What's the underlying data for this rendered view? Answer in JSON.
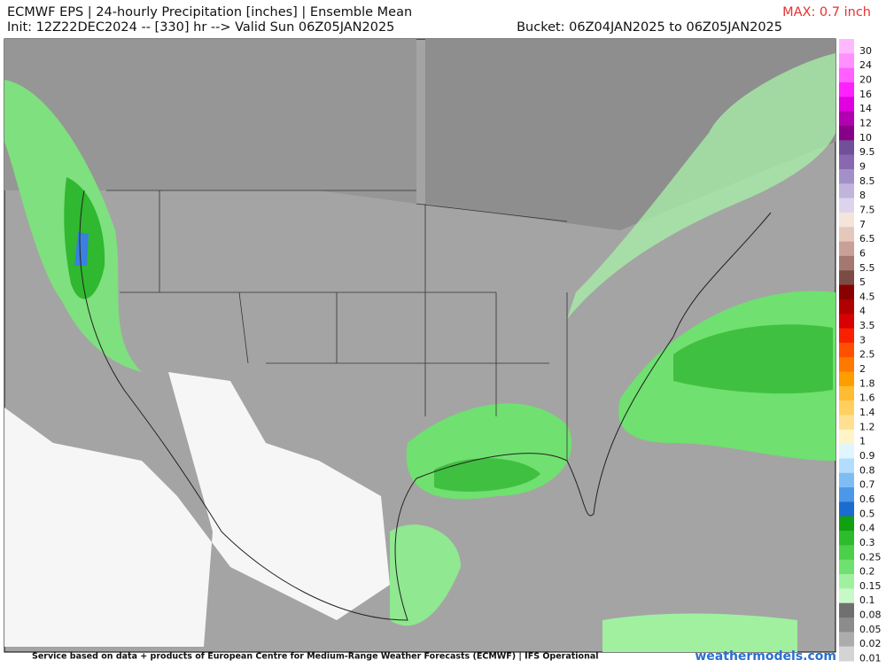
{
  "header": {
    "title": "ECMWF EPS | 24-hourly Precipitation [inches] | Ensemble Mean",
    "max": "MAX: 0.7 inch",
    "init": "Init: 12Z22DEC2024 -- [330] hr --> Valid Sun 06Z05JAN2025",
    "bucket": "Bucket: 06Z04JAN2025 to 06Z05JAN2025"
  },
  "colorbar": {
    "levels": [
      {
        "label": "30",
        "color": "#ffb8ff"
      },
      {
        "label": "24",
        "color": "#ff90ff"
      },
      {
        "label": "20",
        "color": "#ff60ff"
      },
      {
        "label": "16",
        "color": "#ff20ff"
      },
      {
        "label": "14",
        "color": "#e000e0"
      },
      {
        "label": "12",
        "color": "#b000b0"
      },
      {
        "label": "10",
        "color": "#880088"
      },
      {
        "label": "9.5",
        "color": "#705098"
      },
      {
        "label": "9",
        "color": "#8868b0"
      },
      {
        "label": "8.5",
        "color": "#a490c8"
      },
      {
        "label": "8",
        "color": "#c0b4dc"
      },
      {
        "label": "7.5",
        "color": "#dcd4ec"
      },
      {
        "label": "7",
        "color": "#f4e4dc"
      },
      {
        "label": "6.5",
        "color": "#e4c8bc"
      },
      {
        "label": "6",
        "color": "#c8a098"
      },
      {
        "label": "5.5",
        "color": "#a47870"
      },
      {
        "label": "5",
        "color": "#7c4c44"
      },
      {
        "label": "4.5",
        "color": "#880000"
      },
      {
        "label": "4",
        "color": "#b00000"
      },
      {
        "label": "3.5",
        "color": "#d80000"
      },
      {
        "label": "3",
        "color": "#f82000"
      },
      {
        "label": "2.5",
        "color": "#ff5000"
      },
      {
        "label": "2",
        "color": "#ff7800"
      },
      {
        "label": "1.8",
        "color": "#ff9c00"
      },
      {
        "label": "1.6",
        "color": "#ffbc30"
      },
      {
        "label": "1.4",
        "color": "#ffd060"
      },
      {
        "label": "1.2",
        "color": "#ffe090"
      },
      {
        "label": "1",
        "color": "#fff4c8"
      },
      {
        "label": "0.9",
        "color": "#e0f6ff"
      },
      {
        "label": "0.8",
        "color": "#b4dcff"
      },
      {
        "label": "0.7",
        "color": "#80bcf4"
      },
      {
        "label": "0.6",
        "color": "#4c98e8"
      },
      {
        "label": "0.5",
        "color": "#1c6cd0"
      },
      {
        "label": "0.4",
        "color": "#10a010"
      },
      {
        "label": "0.3",
        "color": "#2cbc2c"
      },
      {
        "label": "0.25",
        "color": "#4cd04c"
      },
      {
        "label": "0.2",
        "color": "#70e070"
      },
      {
        "label": "0.15",
        "color": "#a0f0a0"
      },
      {
        "label": "0.1",
        "color": "#c8f8c8"
      },
      {
        "label": "0.08",
        "color": "#707070"
      },
      {
        "label": "0.05",
        "color": "#8c8c8c"
      },
      {
        "label": "0.02",
        "color": "#acacac"
      },
      {
        "label": "0.01",
        "color": "#d4d4d4"
      }
    ]
  },
  "footer": {
    "credit": "Service based on data + products of European Centre for Medium-Range Weather Forecasts (ECMWF) | IFS Operational",
    "site": "weathermodels.com"
  }
}
